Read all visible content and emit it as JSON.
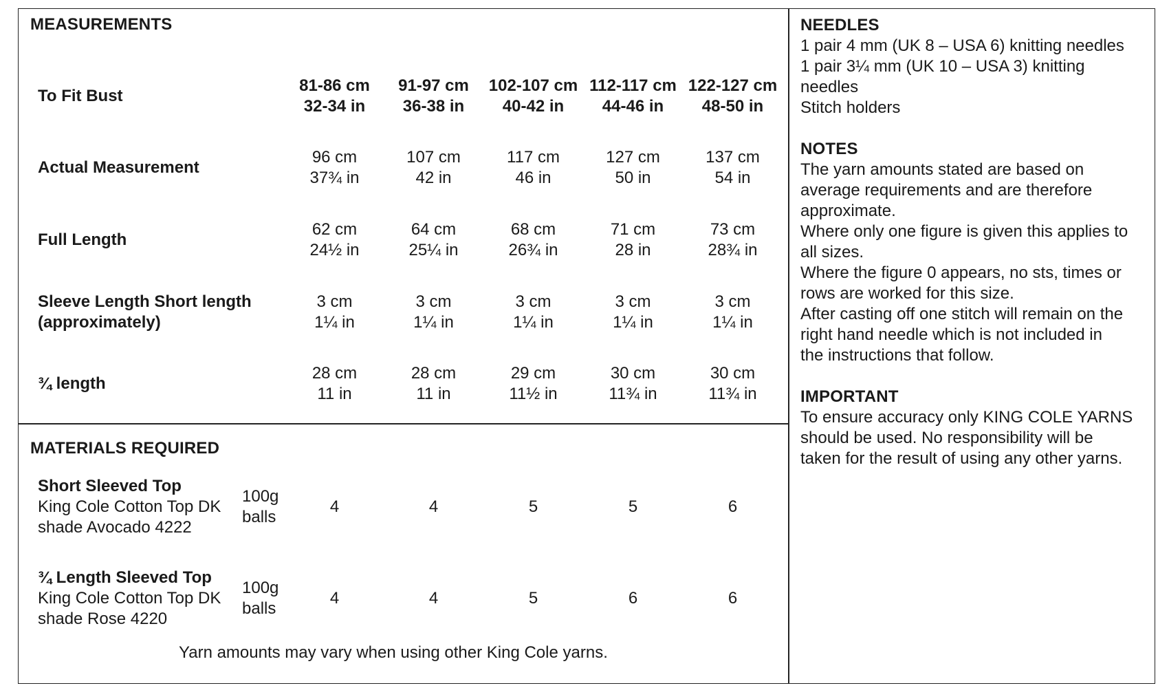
{
  "measurements": {
    "heading": "MEASUREMENTS",
    "sizes": [
      {
        "cm": "81-86 cm",
        "in": "32-34 in"
      },
      {
        "cm": "91-97 cm",
        "in": "36-38 in"
      },
      {
        "cm": "102-107 cm",
        "in": "40-42 in"
      },
      {
        "cm": "112-117 cm",
        "in": "44-46 in"
      },
      {
        "cm": "122-127 cm",
        "in": "48-50 in"
      }
    ],
    "to_fit_bust_label": "To Fit Bust",
    "rows": [
      {
        "label": [
          "Actual Measurement"
        ],
        "values": [
          [
            "96 cm",
            "37¾ in"
          ],
          [
            "107 cm",
            "42 in"
          ],
          [
            "117 cm",
            "46 in"
          ],
          [
            "127 cm",
            "50 in"
          ],
          [
            "137 cm",
            "54 in"
          ]
        ]
      },
      {
        "label": [
          "Full Length"
        ],
        "values": [
          [
            "62 cm",
            "24½ in"
          ],
          [
            "64 cm",
            "25¼ in"
          ],
          [
            "68 cm",
            "26¾ in"
          ],
          [
            "71 cm",
            "28 in"
          ],
          [
            "73 cm",
            "28¾ in"
          ]
        ]
      },
      {
        "label": [
          "Sleeve Length Short length",
          "(approximately)"
        ],
        "values": [
          [
            "3 cm",
            "1¼ in"
          ],
          [
            "3 cm",
            "1¼ in"
          ],
          [
            "3 cm",
            "1¼ in"
          ],
          [
            "3 cm",
            "1¼ in"
          ],
          [
            "3 cm",
            "1¼ in"
          ]
        ]
      },
      {
        "label": [
          "¾ length"
        ],
        "values": [
          [
            "28 cm",
            "11 in"
          ],
          [
            "28 cm",
            "11 in"
          ],
          [
            "29 cm",
            "11½ in"
          ],
          [
            "30 cm",
            "11¾ in"
          ],
          [
            "30 cm",
            "11¾ in"
          ]
        ]
      }
    ]
  },
  "materials": {
    "heading": "MATERIALS REQUIRED",
    "items": [
      {
        "title": "Short Sleeved Top",
        "lines": [
          "King Cole Cotton Top DK",
          "shade Avocado 4222"
        ],
        "unit": [
          "100g",
          "balls"
        ],
        "values": [
          "4",
          "4",
          "5",
          "5",
          "6"
        ]
      },
      {
        "title": "¾ Length Sleeved Top",
        "lines": [
          "King Cole Cotton Top DK",
          "shade Rose 4220"
        ],
        "unit": [
          "100g",
          "balls"
        ],
        "values": [
          "4",
          "4",
          "5",
          "6",
          "6"
        ]
      }
    ],
    "footnote": "Yarn amounts may vary when using other King Cole yarns."
  },
  "needles": {
    "heading": "NEEDLES",
    "lines": [
      "1 pair 4 mm (UK 8 – USA 6) knitting needles",
      "1 pair 3¼ mm (UK 10 – USA 3) knitting",
      "needles",
      "Stitch holders"
    ]
  },
  "notes": {
    "heading": "NOTES",
    "lines": [
      "The yarn amounts stated are based on",
      "average requirements and are therefore",
      "approximate.",
      "Where only one figure is given this applies to",
      "all sizes.",
      "Where the figure 0 appears, no sts, times or",
      "rows are worked for this size.",
      "After casting off one stitch will remain on the",
      "right hand needle which is not included in",
      "the instructions that follow."
    ]
  },
  "important": {
    "heading": "IMPORTANT",
    "lines": [
      "To ensure accuracy only KING COLE YARNS",
      "should be used. No responsibility will be",
      "taken for the result of using any other yarns."
    ]
  }
}
